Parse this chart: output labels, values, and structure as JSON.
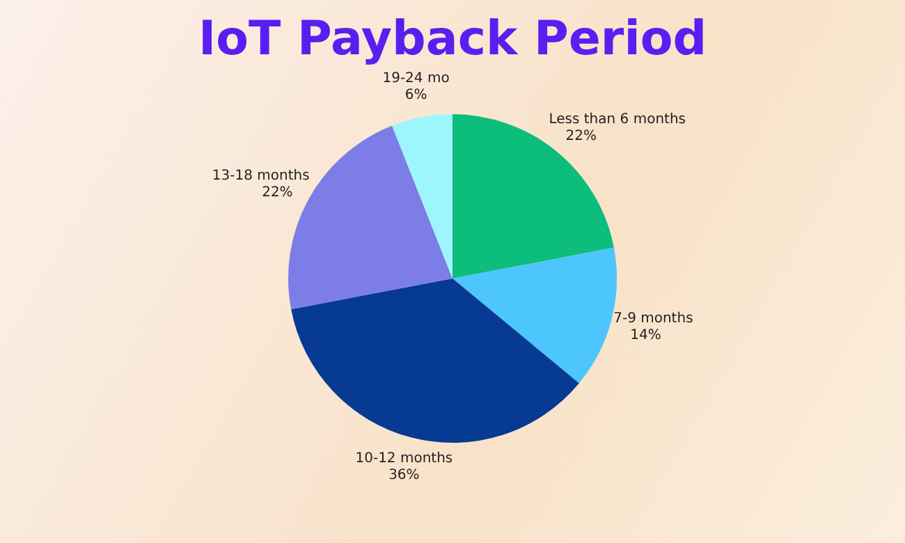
{
  "chart_data": {
    "type": "pie",
    "title": "IoT Payback Period",
    "categories": [
      "Less than 6 months",
      "7-9 months",
      "10-12 months",
      "13-18 months",
      "19-24 mo"
    ],
    "values": [
      22,
      14,
      36,
      22,
      6
    ],
    "colors": [
      "#0dbd7c",
      "#4cc6fd",
      "#063a93",
      "#7d7de8",
      "#9ef6fd"
    ],
    "value_labels": [
      "22%",
      "14%",
      "36%",
      "22%",
      "6%"
    ]
  }
}
